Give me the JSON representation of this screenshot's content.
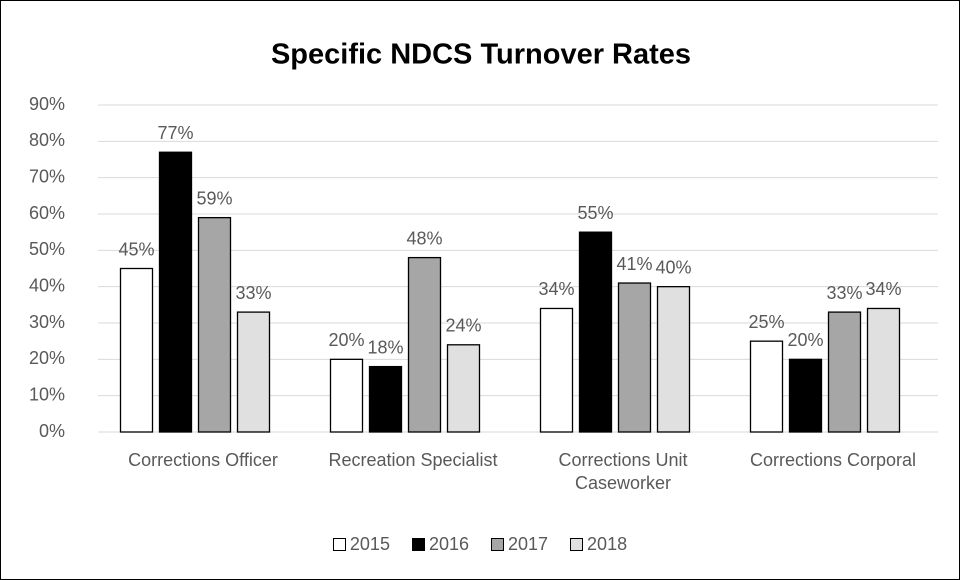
{
  "chart_data": {
    "type": "bar",
    "title": "Specific NDCS Turnover Rates",
    "categories": [
      "Corrections Officer",
      "Recreation Specialist",
      "Corrections Unit Caseworker",
      "Corrections Corporal"
    ],
    "series": [
      {
        "name": "2015",
        "color": "#ffffff",
        "values": [
          45,
          20,
          34,
          25
        ],
        "value_labels": [
          "45%",
          "20%",
          "34%",
          "25%"
        ]
      },
      {
        "name": "2016",
        "color": "#000000",
        "values": [
          77,
          18,
          55,
          20
        ],
        "value_labels": [
          "77%",
          "18%",
          "55%",
          "20%"
        ]
      },
      {
        "name": "2017",
        "color": "#a6a6a6",
        "values": [
          59,
          48,
          41,
          33
        ],
        "value_labels": [
          "59%",
          "48%",
          "41%",
          "33%"
        ]
      },
      {
        "name": "2018",
        "color": "#e0e0e0",
        "values": [
          33,
          24,
          40,
          34
        ],
        "value_labels": [
          "33%",
          "24%",
          "40%",
          "34%"
        ]
      }
    ],
    "ylim": [
      0,
      90
    ],
    "yticks": [
      {
        "value": 0,
        "label": "0%"
      },
      {
        "value": 10,
        "label": "10%"
      },
      {
        "value": 20,
        "label": "20%"
      },
      {
        "value": 30,
        "label": "30%"
      },
      {
        "value": 40,
        "label": "40%"
      },
      {
        "value": 50,
        "label": "50%"
      },
      {
        "value": 60,
        "label": "60%"
      },
      {
        "value": 70,
        "label": "70%"
      },
      {
        "value": 80,
        "label": "80%"
      },
      {
        "value": 90,
        "label": "90%"
      }
    ],
    "grid": true,
    "legend": "bottom"
  }
}
